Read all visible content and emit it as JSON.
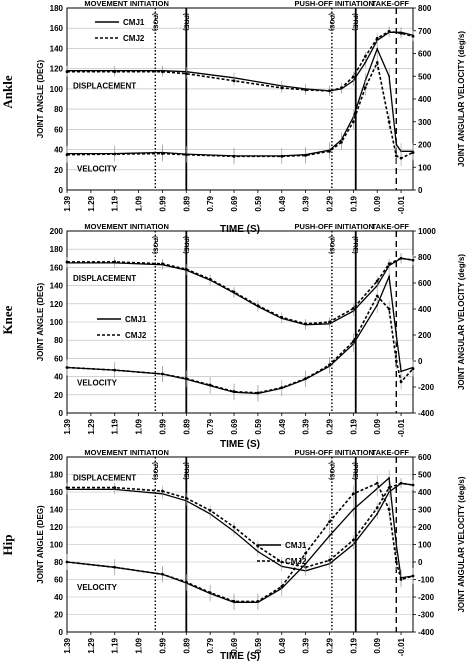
{
  "chart_data": [
    {
      "type": "line",
      "title": "Ankle",
      "xlabel": "TIME (S)",
      "ylabel": "JOINT ANGLE (DEG)",
      "ylabel_right": "JOINT ANGULAR VELOCITY (deg/s)",
      "xlim": [
        1.39,
        -0.06
      ],
      "x_ticks": [
        "1.39",
        "1.29",
        "1.19",
        "1.09",
        "0.99",
        "0.89",
        "0.79",
        "0.69",
        "0.59",
        "0.49",
        "0.39",
        "0.29",
        "0.19",
        "0.09",
        "-0.01"
      ],
      "ylim": [
        0,
        180
      ],
      "y_ticks": [
        "0",
        "20",
        "40",
        "60",
        "80",
        "100",
        "120",
        "140",
        "160",
        "180"
      ],
      "ylim_right": [
        0,
        800
      ],
      "y_ticks_right": [
        "0",
        "100",
        "200",
        "300",
        "400",
        "500",
        "600",
        "700",
        "800"
      ],
      "grid": true,
      "legend_position": "top-left",
      "phase_labels": [
        "MOVEMENT INITIATION",
        "PUSH-OFF INITIATION",
        "TAKE-OFF"
      ],
      "vertical_markers": [
        {
          "x": 1.02,
          "style": "dotted",
          "label": "(POS)"
        },
        {
          "x": 0.89,
          "style": "solid",
          "label": "(PRE)"
        },
        {
          "x": 0.28,
          "style": "dotted",
          "label": "(POS)"
        },
        {
          "x": 0.18,
          "style": "solid",
          "label": "(PRE)"
        },
        {
          "x": 0.01,
          "style": "dashed",
          "label": ""
        }
      ],
      "annotations": [
        "DISPLACEMENT",
        "VELOCITY"
      ],
      "series": [
        {
          "name": "CMJ1",
          "axis": "left",
          "curve": "DISPLACEMENT",
          "style": "solid",
          "x": [
            1.39,
            1.19,
            0.99,
            0.89,
            0.69,
            0.49,
            0.39,
            0.29,
            0.24,
            0.19,
            0.14,
            0.09,
            0.04,
            -0.01,
            -0.06
          ],
          "y": [
            118,
            118,
            118,
            117,
            111,
            103,
            100,
            98,
            100,
            108,
            126,
            148,
            156,
            156,
            153
          ]
        },
        {
          "name": "CMJ2",
          "axis": "left",
          "curve": "DISPLACEMENT",
          "style": "dashed",
          "x": [
            1.39,
            1.19,
            0.99,
            0.89,
            0.69,
            0.49,
            0.39,
            0.29,
            0.24,
            0.19,
            0.14,
            0.09,
            0.04,
            -0.01,
            -0.06
          ],
          "y": [
            117,
            117,
            117,
            115,
            108,
            101,
            99,
            98,
            101,
            112,
            132,
            150,
            157,
            155,
            152
          ]
        },
        {
          "name": "CMJ1",
          "axis": "right",
          "curve": "VELOCITY",
          "style": "solid",
          "x": [
            1.39,
            1.19,
            0.99,
            0.89,
            0.69,
            0.49,
            0.39,
            0.29,
            0.24,
            0.19,
            0.14,
            0.09,
            0.04,
            0.01,
            -0.01,
            -0.06
          ],
          "y": [
            160,
            160,
            165,
            158,
            150,
            150,
            155,
            175,
            220,
            320,
            480,
            620,
            500,
            200,
            170,
            170
          ]
        },
        {
          "name": "CMJ2",
          "axis": "right",
          "curve": "VELOCITY",
          "style": "dashed",
          "x": [
            1.39,
            1.19,
            0.99,
            0.89,
            0.69,
            0.49,
            0.39,
            0.29,
            0.24,
            0.19,
            0.14,
            0.09,
            0.04,
            0.01,
            -0.01,
            -0.06
          ],
          "y": [
            155,
            158,
            160,
            155,
            148,
            148,
            152,
            170,
            210,
            300,
            450,
            560,
            300,
            150,
            140,
            165
          ]
        }
      ]
    },
    {
      "type": "line",
      "title": "Knee",
      "xlabel": "TIME (S)",
      "ylabel": "JOINT ANGLE (DEG)",
      "ylabel_right": "JOINT ANGULAR VELOCITY (deg/s)",
      "xlim": [
        1.39,
        -0.06
      ],
      "x_ticks": [
        "1.39",
        "1.29",
        "1.19",
        "1.09",
        "0.99",
        "0.89",
        "0.79",
        "0.69",
        "0.59",
        "0.49",
        "0.39",
        "0.29",
        "0.19",
        "0.09",
        "-0.01"
      ],
      "ylim": [
        0,
        200
      ],
      "y_ticks": [
        "0",
        "20",
        "40",
        "60",
        "80",
        "100",
        "120",
        "140",
        "160",
        "180",
        "200"
      ],
      "ylim_right": [
        -400,
        1000
      ],
      "y_ticks_right": [
        "-400",
        "-200",
        "0",
        "200",
        "400",
        "600",
        "800",
        "1000"
      ],
      "grid": true,
      "legend_position": "center-left",
      "phase_labels": [
        "MOVEMENT INITIATION",
        "PUSH-OFF INITIATION",
        "TAKE-OFF"
      ],
      "vertical_markers": [
        {
          "x": 1.02,
          "style": "dotted",
          "label": "(POS)"
        },
        {
          "x": 0.89,
          "style": "solid",
          "label": "(PRE)"
        },
        {
          "x": 0.28,
          "style": "dotted",
          "label": "(POS)"
        },
        {
          "x": 0.18,
          "style": "solid",
          "label": "(PRE)"
        },
        {
          "x": 0.01,
          "style": "dashed",
          "label": ""
        }
      ],
      "annotations": [
        "DISPLACEMENT",
        "VELOCITY"
      ],
      "series": [
        {
          "name": "CMJ1",
          "axis": "left",
          "curve": "DISPLACEMENT",
          "style": "solid",
          "x": [
            1.39,
            1.19,
            0.99,
            0.89,
            0.79,
            0.69,
            0.59,
            0.49,
            0.39,
            0.29,
            0.19,
            0.09,
            0.04,
            -0.01,
            -0.06
          ],
          "y": [
            165,
            165,
            163,
            157,
            146,
            132,
            117,
            104,
            97,
            98,
            112,
            140,
            162,
            170,
            168
          ]
        },
        {
          "name": "CMJ2",
          "axis": "left",
          "curve": "DISPLACEMENT",
          "style": "dashed",
          "x": [
            1.39,
            1.19,
            0.99,
            0.89,
            0.79,
            0.69,
            0.59,
            0.49,
            0.39,
            0.29,
            0.19,
            0.09,
            0.04,
            -0.01,
            -0.06
          ],
          "y": [
            166,
            166,
            164,
            158,
            147,
            133,
            118,
            105,
            98,
            100,
            115,
            145,
            164,
            170,
            168
          ]
        },
        {
          "name": "CMJ1",
          "axis": "right",
          "curve": "VELOCITY",
          "style": "solid",
          "x": [
            1.39,
            1.19,
            0.99,
            0.89,
            0.79,
            0.69,
            0.59,
            0.49,
            0.39,
            0.29,
            0.19,
            0.09,
            0.04,
            0.01,
            -0.01,
            -0.06
          ],
          "y": [
            -50,
            -70,
            -100,
            -140,
            -190,
            -240,
            -250,
            -210,
            -140,
            -40,
            130,
            430,
            650,
            200,
            -80,
            -50
          ]
        },
        {
          "name": "CMJ2",
          "axis": "right",
          "curve": "VELOCITY",
          "style": "dashed",
          "x": [
            1.39,
            1.19,
            0.99,
            0.89,
            0.79,
            0.69,
            0.59,
            0.49,
            0.39,
            0.29,
            0.19,
            0.09,
            0.04,
            0.01,
            -0.01,
            -0.06
          ],
          "y": [
            -50,
            -70,
            -100,
            -135,
            -185,
            -235,
            -245,
            -205,
            -135,
            -30,
            150,
            500,
            400,
            0,
            -160,
            -60
          ]
        }
      ]
    },
    {
      "type": "line",
      "title": "Hip",
      "xlabel": "TIME (S)",
      "ylabel": "JOINT ANGLE (DEG)",
      "ylabel_right": "JOINT ANGULAR VELOCITY (deg/s)",
      "xlim": [
        1.39,
        -0.06
      ],
      "x_ticks": [
        "1.39",
        "1.29",
        "1.19",
        "1.09",
        "0.99",
        "0.89",
        "0.79",
        "0.69",
        "0.59",
        "0.49",
        "0.39",
        "0.29",
        "0.19",
        "0.09",
        "-0.01"
      ],
      "ylim": [
        0,
        200
      ],
      "y_ticks": [
        "0",
        "20",
        "40",
        "60",
        "80",
        "100",
        "120",
        "140",
        "160",
        "180",
        "200"
      ],
      "ylim_right": [
        -400,
        600
      ],
      "y_ticks_right": [
        "-400",
        "-300",
        "-200",
        "-100",
        "0",
        "100",
        "200",
        "300",
        "400",
        "500",
        "600"
      ],
      "grid": true,
      "legend_position": "center-right",
      "phase_labels": [
        "MOVEMENT INITIATION",
        "PUSH-OFF INITIATION",
        "TAKE-OFF"
      ],
      "vertical_markers": [
        {
          "x": 1.02,
          "style": "dotted",
          "label": "(POS)"
        },
        {
          "x": 0.89,
          "style": "solid",
          "label": "(PRE)"
        },
        {
          "x": 0.28,
          "style": "dotted",
          "label": "(POS)"
        },
        {
          "x": 0.18,
          "style": "solid",
          "label": "(PRE)"
        },
        {
          "x": 0.01,
          "style": "dashed",
          "label": ""
        }
      ],
      "annotations": [
        "DISPLACEMENT",
        "VELOCITY"
      ],
      "series": [
        {
          "name": "CMJ1",
          "axis": "left",
          "curve": "DISPLACEMENT",
          "style": "solid",
          "x": [
            1.39,
            1.19,
            0.99,
            0.89,
            0.79,
            0.69,
            0.59,
            0.49,
            0.39,
            0.29,
            0.19,
            0.09,
            0.04,
            -0.01,
            -0.06
          ],
          "y": [
            163,
            163,
            158,
            150,
            135,
            115,
            92,
            75,
            70,
            78,
            100,
            135,
            160,
            170,
            168
          ]
        },
        {
          "name": "CMJ2",
          "axis": "left",
          "curve": "DISPLACEMENT",
          "style": "dashed",
          "x": [
            1.39,
            1.19,
            0.99,
            0.89,
            0.79,
            0.69,
            0.59,
            0.49,
            0.39,
            0.29,
            0.19,
            0.09,
            0.04,
            -0.01,
            -0.06
          ],
          "y": [
            165,
            165,
            161,
            153,
            139,
            120,
            98,
            80,
            74,
            82,
            105,
            142,
            165,
            170,
            168
          ]
        },
        {
          "name": "CMJ1",
          "axis": "right",
          "curve": "VELOCITY",
          "style": "solid",
          "x": [
            1.39,
            1.19,
            0.99,
            0.89,
            0.79,
            0.69,
            0.59,
            0.49,
            0.39,
            0.29,
            0.19,
            0.09,
            0.04,
            0.01,
            -0.01,
            -0.06
          ],
          "y": [
            0,
            -30,
            -70,
            -120,
            -180,
            -230,
            -230,
            -150,
            -10,
            150,
            300,
            420,
            480,
            100,
            -90,
            -80
          ]
        },
        {
          "name": "CMJ2",
          "axis": "right",
          "curve": "VELOCITY",
          "style": "dashed",
          "x": [
            1.39,
            1.19,
            0.99,
            0.89,
            0.79,
            0.69,
            0.59,
            0.49,
            0.39,
            0.29,
            0.19,
            0.09,
            0.04,
            0.01,
            -0.01,
            -0.06
          ],
          "y": [
            0,
            -30,
            -70,
            -115,
            -175,
            -225,
            -225,
            -140,
            50,
            230,
            390,
            450,
            300,
            0,
            -100,
            -80
          ]
        }
      ]
    }
  ]
}
